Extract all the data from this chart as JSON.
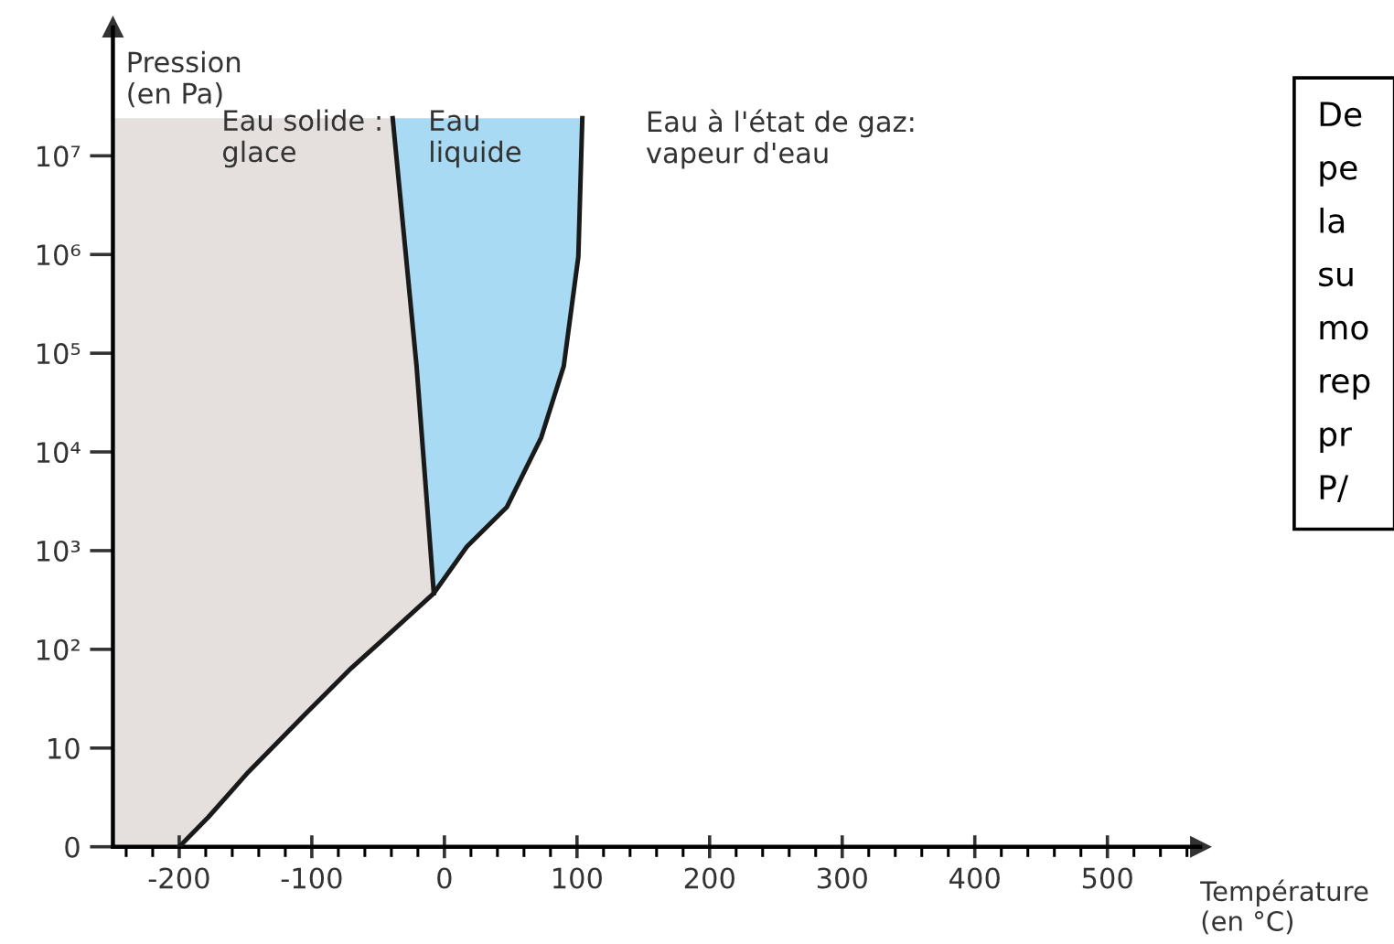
{
  "chart_data": {
    "type": "line",
    "xlabel": "Température\n(en °C)",
    "ylabel": "Pression\n(en Pa)",
    "series": [
      {
        "color": "#1a1a1a",
        "x": [
          -200,
          -178,
          -148,
          -105,
          -70,
          -48,
          -8,
          17,
          47,
          73,
          90,
          101,
          104
        ],
        "values": [
          1,
          2,
          5.7,
          22,
          65,
          120,
          370,
          1100,
          2750,
          14000,
          74000,
          950000,
          24000000
        ]
      },
      {
        "color": "#1a1a1a",
        "x": [
          -8,
          -21,
          -39
        ],
        "values": [
          370,
          74000,
          24000000
        ]
      }
    ],
    "colors": [
      "#e5e0de",
      "#a9daf3"
    ],
    "annotations": [
      "Eau solide :\nglace",
      "Eau\nliquide",
      "Eau à l'état de gaz:\nvapeur d'eau",
      "De\npe\nla\nsu\nmo\nrep\npr\nP/"
    ],
    "log": "y",
    "xlim": [
      -250,
      570
    ],
    "ylim": [
      0,
      200000000
    ],
    "xticks": [
      -200,
      -100,
      0,
      100,
      200,
      300,
      400,
      500
    ],
    "yticks": [
      0,
      10,
      {
        "value": 100,
        "label": "10²"
      },
      {
        "value": 1000,
        "label": "10³"
      },
      {
        "value": 10000,
        "label": "10⁴"
      },
      {
        "value": 100000,
        "label": "10⁵"
      },
      {
        "value": 1000000,
        "label": "10⁶"
      },
      {
        "value": 10000000,
        "label": "10⁷"
      }
    ],
    "grid": false,
    "legend": false,
    "marker": "none",
    "line_style": "solid"
  }
}
